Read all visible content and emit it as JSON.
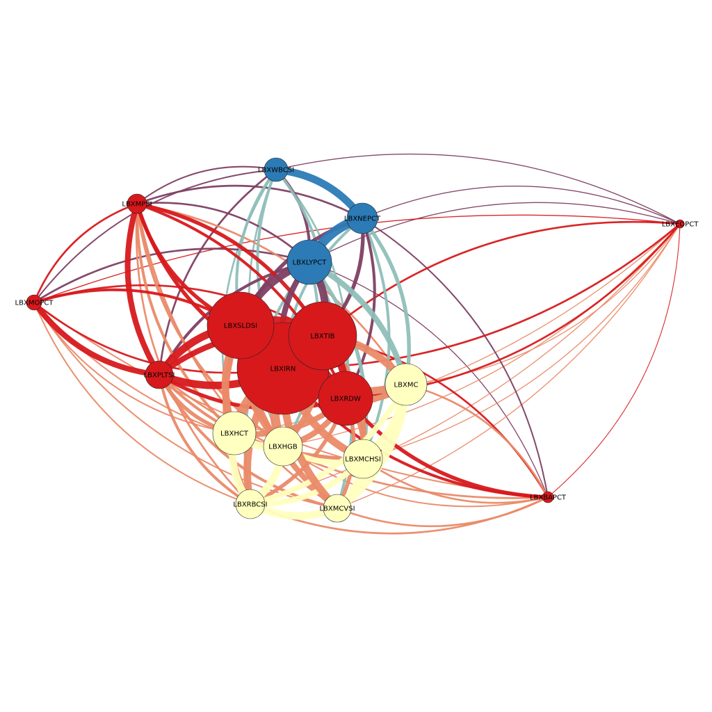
{
  "colors": {
    "blue": "#2c7bb6",
    "red": "#d7191c",
    "cream": "#ffffbf",
    "salmon": "#ea8a68",
    "teal": "#8fbfb9",
    "plum": "#7e3f63"
  },
  "nodes": [
    {
      "id": "LBXWBCSI",
      "label": "LBXWBCSI",
      "group": "blue",
      "degree": 1
    },
    {
      "id": "LBXNEPCT",
      "label": "LBXNEPCT",
      "group": "blue",
      "degree": 2
    },
    {
      "id": "LBXLYPCT",
      "label": "LBXLYPCT",
      "group": "blue",
      "degree": 3
    },
    {
      "id": "LBXMPSI",
      "label": "LBXMPSI",
      "group": "red",
      "degree": 1
    },
    {
      "id": "LBXMOPCT",
      "label": "LBXMOPCT",
      "group": "red",
      "degree": 0
    },
    {
      "id": "LBXEOPCT",
      "label": "LBXEOPCT",
      "group": "red",
      "degree": 0
    },
    {
      "id": "LBXBAPCT",
      "label": "LBXBAPCT",
      "group": "red",
      "degree": 0
    },
    {
      "id": "LBXPLTSI",
      "label": "LBXPLTSI",
      "group": "red",
      "degree": 1
    },
    {
      "id": "LBXSLDSI",
      "label": "LBXSLDSI",
      "group": "red",
      "degree": 6
    },
    {
      "id": "LBXTIB",
      "label": "LBXTIB",
      "group": "red",
      "degree": 6
    },
    {
      "id": "LBXIRN",
      "label": "LBXIRN",
      "group": "red",
      "degree": 8
    },
    {
      "id": "LBXRDW",
      "label": "LBXRDW",
      "group": "red",
      "degree": 4
    },
    {
      "id": "LBXMC",
      "label": "LBXMC",
      "group": "cream",
      "degree": 3
    },
    {
      "id": "LBXHCT",
      "label": "LBXHCT",
      "group": "cream",
      "degree": 3
    },
    {
      "id": "LBXHGB",
      "label": "LBXHGB",
      "group": "cream",
      "degree": 3
    },
    {
      "id": "LBXMCHSI",
      "label": "LBXMCHSI",
      "group": "cream",
      "degree": 3
    },
    {
      "id": "LBXRBCSI",
      "label": "LBXRBCSI",
      "group": "cream",
      "degree": 2
    },
    {
      "id": "LBXMCVSI",
      "label": "LBXMCVSI",
      "group": "cream",
      "degree": 2
    }
  ],
  "edges": [
    {
      "source": "LBXNEPCT",
      "target": "LBXLYPCT",
      "weight": 10,
      "color": "blue"
    },
    {
      "source": "LBXWBCSI",
      "target": "LBXNEPCT",
      "weight": 8,
      "color": "blue"
    },
    {
      "source": "LBXWBCSI",
      "target": "LBXLYPCT",
      "weight": 3,
      "color": "plum"
    },
    {
      "source": "LBXWBCSI",
      "target": "LBXMPSI",
      "weight": 1.5,
      "color": "plum"
    },
    {
      "source": "LBXWBCSI",
      "target": "LBXMOPCT",
      "weight": 1.5,
      "color": "plum"
    },
    {
      "source": "LBXWBCSI",
      "target": "LBXSLDSI",
      "weight": 3,
      "color": "teal"
    },
    {
      "source": "LBXWBCSI",
      "target": "LBXTIB",
      "weight": 3,
      "color": "teal"
    },
    {
      "source": "LBXWBCSI",
      "target": "LBXIRN",
      "weight": 3,
      "color": "teal"
    },
    {
      "source": "LBXWBCSI",
      "target": "LBXPLTSI",
      "weight": 2,
      "color": "plum"
    },
    {
      "source": "LBXWBCSI",
      "target": "LBXHCT",
      "weight": 2,
      "color": "teal"
    },
    {
      "source": "LBXWBCSI",
      "target": "LBXHGB",
      "weight": 2,
      "color": "teal"
    },
    {
      "source": "LBXWBCSI",
      "target": "LBXRDW",
      "weight": 2,
      "color": "teal"
    },
    {
      "source": "LBXWBCSI",
      "target": "LBXEOPCT",
      "weight": 1,
      "color": "plum"
    },
    {
      "source": "LBXNEPCT",
      "target": "LBXMPSI",
      "weight": 2,
      "color": "plum"
    },
    {
      "source": "LBXNEPCT",
      "target": "LBXSLDSI",
      "weight": 4,
      "color": "plum"
    },
    {
      "source": "LBXNEPCT",
      "target": "LBXTIB",
      "weight": 4,
      "color": "plum"
    },
    {
      "source": "LBXNEPCT",
      "target": "LBXIRN",
      "weight": 3,
      "color": "teal"
    },
    {
      "source": "LBXNEPCT",
      "target": "LBXMC",
      "weight": 4,
      "color": "teal"
    },
    {
      "source": "LBXNEPCT",
      "target": "LBXMCHSI",
      "weight": 3,
      "color": "teal"
    },
    {
      "source": "LBXNEPCT",
      "target": "LBXRDW",
      "weight": 3,
      "color": "plum"
    },
    {
      "source": "LBXNEPCT",
      "target": "LBXEOPCT",
      "weight": 1,
      "color": "plum"
    },
    {
      "source": "LBXNEPCT",
      "target": "LBXBAPCT",
      "weight": 1.5,
      "color": "plum"
    },
    {
      "source": "LBXLYPCT",
      "target": "LBXMPSI",
      "weight": 2,
      "color": "plum"
    },
    {
      "source": "LBXLYPCT",
      "target": "LBXMOPCT",
      "weight": 2,
      "color": "plum"
    },
    {
      "source": "LBXLYPCT",
      "target": "LBXSLDSI",
      "weight": 8,
      "color": "plum"
    },
    {
      "source": "LBXLYPCT",
      "target": "LBXTIB",
      "weight": 8,
      "color": "plum"
    },
    {
      "source": "LBXLYPCT",
      "target": "LBXIRN",
      "weight": 6,
      "color": "plum"
    },
    {
      "source": "LBXLYPCT",
      "target": "LBXPLTSI",
      "weight": 3,
      "color": "plum"
    },
    {
      "source": "LBXLYPCT",
      "target": "LBXMC",
      "weight": 6,
      "color": "teal"
    },
    {
      "source": "LBXLYPCT",
      "target": "LBXMCHSI",
      "weight": 4,
      "color": "teal"
    },
    {
      "source": "LBXLYPCT",
      "target": "LBXMCVSI",
      "weight": 3,
      "color": "teal"
    },
    {
      "source": "LBXLYPCT",
      "target": "LBXRBCSI",
      "weight": 3,
      "color": "teal"
    },
    {
      "source": "LBXLYPCT",
      "target": "LBXHGB",
      "weight": 3,
      "color": "teal"
    },
    {
      "source": "LBXLYPCT",
      "target": "LBXEOPCT",
      "weight": 1,
      "color": "plum"
    },
    {
      "source": "LBXLYPCT",
      "target": "LBXBAPCT",
      "weight": 1,
      "color": "plum"
    },
    {
      "source": "LBXMPSI",
      "target": "LBXMOPCT",
      "weight": 2,
      "color": "red"
    },
    {
      "source": "LBXMPSI",
      "target": "LBXPLTSI",
      "weight": 6,
      "color": "red"
    },
    {
      "source": "LBXMPSI",
      "target": "LBXSLDSI",
      "weight": 4,
      "color": "red"
    },
    {
      "source": "LBXMPSI",
      "target": "LBXTIB",
      "weight": 4,
      "color": "red"
    },
    {
      "source": "LBXMPSI",
      "target": "LBXIRN",
      "weight": 4,
      "color": "red"
    },
    {
      "source": "LBXMPSI",
      "target": "LBXRDW",
      "weight": 3,
      "color": "red"
    },
    {
      "source": "LBXMPSI",
      "target": "LBXHCT",
      "weight": 3,
      "color": "salmon"
    },
    {
      "source": "LBXMPSI",
      "target": "LBXHGB",
      "weight": 3,
      "color": "salmon"
    },
    {
      "source": "LBXMPSI",
      "target": "LBXRBCSI",
      "weight": 2,
      "color": "salmon"
    },
    {
      "source": "LBXMPSI",
      "target": "LBXMCVSI",
      "weight": 2,
      "color": "salmon"
    },
    {
      "source": "LBXMPSI",
      "target": "LBXMC",
      "weight": 2,
      "color": "salmon"
    },
    {
      "source": "LBXMOPCT",
      "target": "LBXPLTSI",
      "weight": 6,
      "color": "red"
    },
    {
      "source": "LBXMOPCT",
      "target": "LBXSLDSI",
      "weight": 3,
      "color": "red"
    },
    {
      "source": "LBXMOPCT",
      "target": "LBXTIB",
      "weight": 2,
      "color": "red"
    },
    {
      "source": "LBXMOPCT",
      "target": "LBXIRN",
      "weight": 2,
      "color": "red"
    },
    {
      "source": "LBXMOPCT",
      "target": "LBXHCT",
      "weight": 1.5,
      "color": "salmon"
    },
    {
      "source": "LBXMOPCT",
      "target": "LBXRBCSI",
      "weight": 1.5,
      "color": "salmon"
    },
    {
      "source": "LBXMOPCT",
      "target": "LBXMCVSI",
      "weight": 1.5,
      "color": "salmon"
    },
    {
      "source": "LBXMOPCT",
      "target": "LBXBAPCT",
      "weight": 1.5,
      "color": "salmon"
    },
    {
      "source": "LBXMOPCT",
      "target": "LBXMCHSI",
      "weight": 1.5,
      "color": "salmon"
    },
    {
      "source": "LBXMOPCT",
      "target": "LBXEOPCT",
      "weight": 1,
      "color": "red"
    },
    {
      "source": "LBXPLTSI",
      "target": "LBXSLDSI",
      "weight": 8,
      "color": "red"
    },
    {
      "source": "LBXPLTSI",
      "target": "LBXTIB",
      "weight": 6,
      "color": "red"
    },
    {
      "source": "LBXPLTSI",
      "target": "LBXIRN",
      "weight": 8,
      "color": "red"
    },
    {
      "source": "LBXPLTSI",
      "target": "LBXRDW",
      "weight": 4,
      "color": "red"
    },
    {
      "source": "LBXPLTSI",
      "target": "LBXHCT",
      "weight": 4,
      "color": "salmon"
    },
    {
      "source": "LBXPLTSI",
      "target": "LBXRBCSI",
      "weight": 3,
      "color": "salmon"
    },
    {
      "source": "LBXPLTSI",
      "target": "LBXMCVSI",
      "weight": 3,
      "color": "salmon"
    },
    {
      "source": "LBXPLTSI",
      "target": "LBXMCHSI",
      "weight": 3,
      "color": "salmon"
    },
    {
      "source": "LBXPLTSI",
      "target": "LBXBAPCT",
      "weight": 2,
      "color": "salmon"
    },
    {
      "source": "LBXSLDSI",
      "target": "LBXTIB",
      "weight": 10,
      "color": "red"
    },
    {
      "source": "LBXSLDSI",
      "target": "LBXIRN",
      "weight": 12,
      "color": "red"
    },
    {
      "source": "LBXSLDSI",
      "target": "LBXRDW",
      "weight": 6,
      "color": "red"
    },
    {
      "source": "LBXSLDSI",
      "target": "LBXHCT",
      "weight": 8,
      "color": "salmon"
    },
    {
      "source": "LBXSLDSI",
      "target": "LBXHGB",
      "weight": 8,
      "color": "salmon"
    },
    {
      "source": "LBXSLDSI",
      "target": "LBXRBCSI",
      "weight": 6,
      "color": "salmon"
    },
    {
      "source": "LBXSLDSI",
      "target": "LBXMCVSI",
      "weight": 6,
      "color": "salmon"
    },
    {
      "source": "LBXTIB",
      "target": "LBXIRN",
      "weight": 12,
      "color": "red"
    },
    {
      "source": "LBXTIB",
      "target": "LBXRDW",
      "weight": 8,
      "color": "red"
    },
    {
      "source": "LBXTIB",
      "target": "LBXMC",
      "weight": 8,
      "color": "salmon"
    },
    {
      "source": "LBXTIB",
      "target": "LBXMCHSI",
      "weight": 6,
      "color": "salmon"
    },
    {
      "source": "LBXTIB",
      "target": "LBXHGB",
      "weight": 6,
      "color": "salmon"
    },
    {
      "source": "LBXTIB",
      "target": "LBXEOPCT",
      "weight": 2,
      "color": "red"
    },
    {
      "source": "LBXTIB",
      "target": "LBXBAPCT",
      "weight": 2,
      "color": "red"
    },
    {
      "source": "LBXIRN",
      "target": "LBXRDW",
      "weight": 10,
      "color": "red"
    },
    {
      "source": "LBXIRN",
      "target": "LBXHCT",
      "weight": 10,
      "color": "salmon"
    },
    {
      "source": "LBXIRN",
      "target": "LBXHGB",
      "weight": 10,
      "color": "salmon"
    },
    {
      "source": "LBXIRN",
      "target": "LBXMCHSI",
      "weight": 8,
      "color": "salmon"
    },
    {
      "source": "LBXIRN",
      "target": "LBXRBCSI",
      "weight": 8,
      "color": "salmon"
    },
    {
      "source": "LBXIRN",
      "target": "LBXMCVSI",
      "weight": 8,
      "color": "salmon"
    },
    {
      "source": "LBXIRN",
      "target": "LBXMC",
      "weight": 8,
      "color": "salmon"
    },
    {
      "source": "LBXIRN",
      "target": "LBXEOPCT",
      "weight": 2,
      "color": "red"
    },
    {
      "source": "LBXIRN",
      "target": "LBXBAPCT",
      "weight": 3,
      "color": "red"
    },
    {
      "source": "LBXRDW",
      "target": "LBXMC",
      "weight": 6,
      "color": "salmon"
    },
    {
      "source": "LBXRDW",
      "target": "LBXMCHSI",
      "weight": 6,
      "color": "salmon"
    },
    {
      "source": "LBXRDW",
      "target": "LBXHCT",
      "weight": 6,
      "color": "salmon"
    },
    {
      "source": "LBXRDW",
      "target": "LBXHGB",
      "weight": 6,
      "color": "salmon"
    },
    {
      "source": "LBXRDW",
      "target": "LBXRBCSI",
      "weight": 4,
      "color": "salmon"
    },
    {
      "source": "LBXRDW",
      "target": "LBXMCVSI",
      "weight": 4,
      "color": "salmon"
    },
    {
      "source": "LBXRDW",
      "target": "LBXEOPCT",
      "weight": 2,
      "color": "red"
    },
    {
      "source": "LBXRDW",
      "target": "LBXBAPCT",
      "weight": 4,
      "color": "red"
    },
    {
      "source": "LBXMC",
      "target": "LBXMCHSI",
      "weight": 10,
      "color": "cream"
    },
    {
      "source": "LBXMC",
      "target": "LBXMCVSI",
      "weight": 10,
      "color": "cream"
    },
    {
      "source": "LBXMC",
      "target": "LBXRBCSI",
      "weight": 6,
      "color": "cream"
    },
    {
      "source": "LBXMC",
      "target": "LBXEOPCT",
      "weight": 1,
      "color": "salmon"
    },
    {
      "source": "LBXMC",
      "target": "LBXBAPCT",
      "weight": 2,
      "color": "salmon"
    },
    {
      "source": "LBXHCT",
      "target": "LBXHGB",
      "weight": 8,
      "color": "cream"
    },
    {
      "source": "LBXHCT",
      "target": "LBXRBCSI",
      "weight": 8,
      "color": "cream"
    },
    {
      "source": "LBXHCT",
      "target": "LBXEOPCT",
      "weight": 1,
      "color": "salmon"
    },
    {
      "source": "LBXHGB",
      "target": "LBXRBCSI",
      "weight": 8,
      "color": "cream"
    },
    {
      "source": "LBXHGB",
      "target": "LBXMCHSI",
      "weight": 6,
      "color": "cream"
    },
    {
      "source": "LBXHGB",
      "target": "LBXEOPCT",
      "weight": 1,
      "color": "salmon"
    },
    {
      "source": "LBXHGB",
      "target": "LBXBAPCT",
      "weight": 1.5,
      "color": "salmon"
    },
    {
      "source": "LBXMCHSI",
      "target": "LBXMCVSI",
      "weight": 8,
      "color": "cream"
    },
    {
      "source": "LBXMCHSI",
      "target": "LBXRBCSI",
      "weight": 6,
      "color": "cream"
    },
    {
      "source": "LBXMCHSI",
      "target": "LBXBAPCT",
      "weight": 2,
      "color": "salmon"
    },
    {
      "source": "LBXMCHSI",
      "target": "LBXEOPCT",
      "weight": 1,
      "color": "salmon"
    },
    {
      "source": "LBXRBCSI",
      "target": "LBXMCVSI",
      "weight": 8,
      "color": "cream"
    },
    {
      "source": "LBXRBCSI",
      "target": "LBXBAPCT",
      "weight": 2,
      "color": "salmon"
    },
    {
      "source": "LBXRBCSI",
      "target": "LBXEOPCT",
      "weight": 1,
      "color": "salmon"
    },
    {
      "source": "LBXMCVSI",
      "target": "LBXBAPCT",
      "weight": 2,
      "color": "salmon"
    },
    {
      "source": "LBXMCVSI",
      "target": "LBXEOPCT",
      "weight": 1,
      "color": "salmon"
    },
    {
      "source": "LBXEOPCT",
      "target": "LBXBAPCT",
      "weight": 0.8,
      "color": "red"
    }
  ]
}
